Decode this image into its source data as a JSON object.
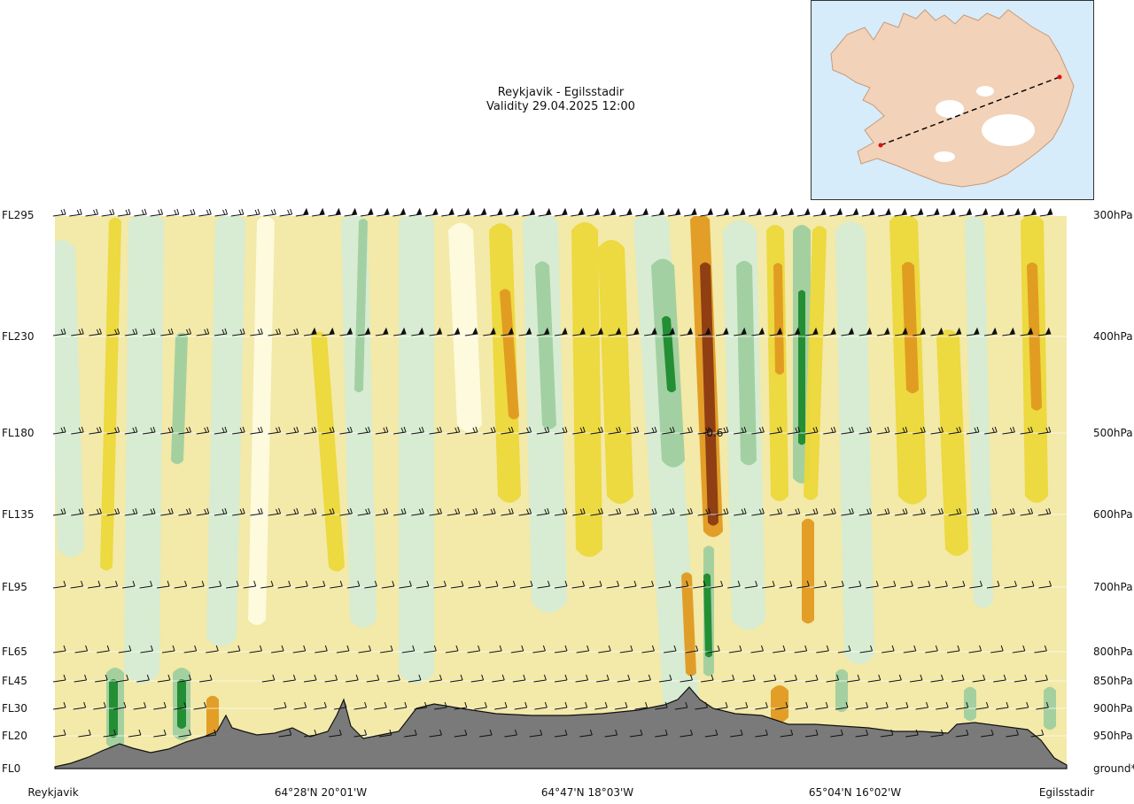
{
  "header": {
    "route": "Reykjavik - Egilsstadir",
    "validity": "Validity 29.04.2025 12:00"
  },
  "map": {
    "name": "Iceland inset map",
    "start_marker": "Reykjavik",
    "end_marker": "Egilsstadir"
  },
  "chart_data": {
    "type": "heatmap",
    "title": "Reykjavik - Egilsstadir",
    "subtitle": "Validity 29.04.2025 12:00",
    "y_left_ticks": [
      "FL295",
      "FL230",
      "FL180",
      "FL135",
      "FL95",
      "FL65",
      "FL45",
      "FL30",
      "FL20",
      "FL0"
    ],
    "y_left_values": [
      295,
      230,
      180,
      135,
      95,
      65,
      45,
      30,
      20,
      0
    ],
    "y_right_ticks": [
      "300hPa",
      "400hPa",
      "500hPa",
      "600hPa",
      "700hPa",
      "800hPa",
      "850hPa",
      "900hPa",
      "950hPa",
      "ground*"
    ],
    "x_ticks": [
      "Reykjavik",
      "64°28'N 20°01'W",
      "64°47'N 18°03'W",
      "65°04'N 16°02'W",
      "Egilsstadir"
    ],
    "x_positions": [
      0,
      0.25,
      0.5,
      0.75,
      1.0
    ],
    "contour_label": "-0.6",
    "color_scale": {
      "strong_negative": "#8b3a12",
      "negative": "#e09a20",
      "weak_negative": "#ecd83a",
      "neutral_low": "#f5eca8",
      "neutral": "#fdfbe0",
      "weak_positive": "#d5ecd4",
      "positive": "#9fcf9f",
      "strong_positive": "#1e8a2e"
    },
    "terrain_color": "#7a7a7a"
  }
}
